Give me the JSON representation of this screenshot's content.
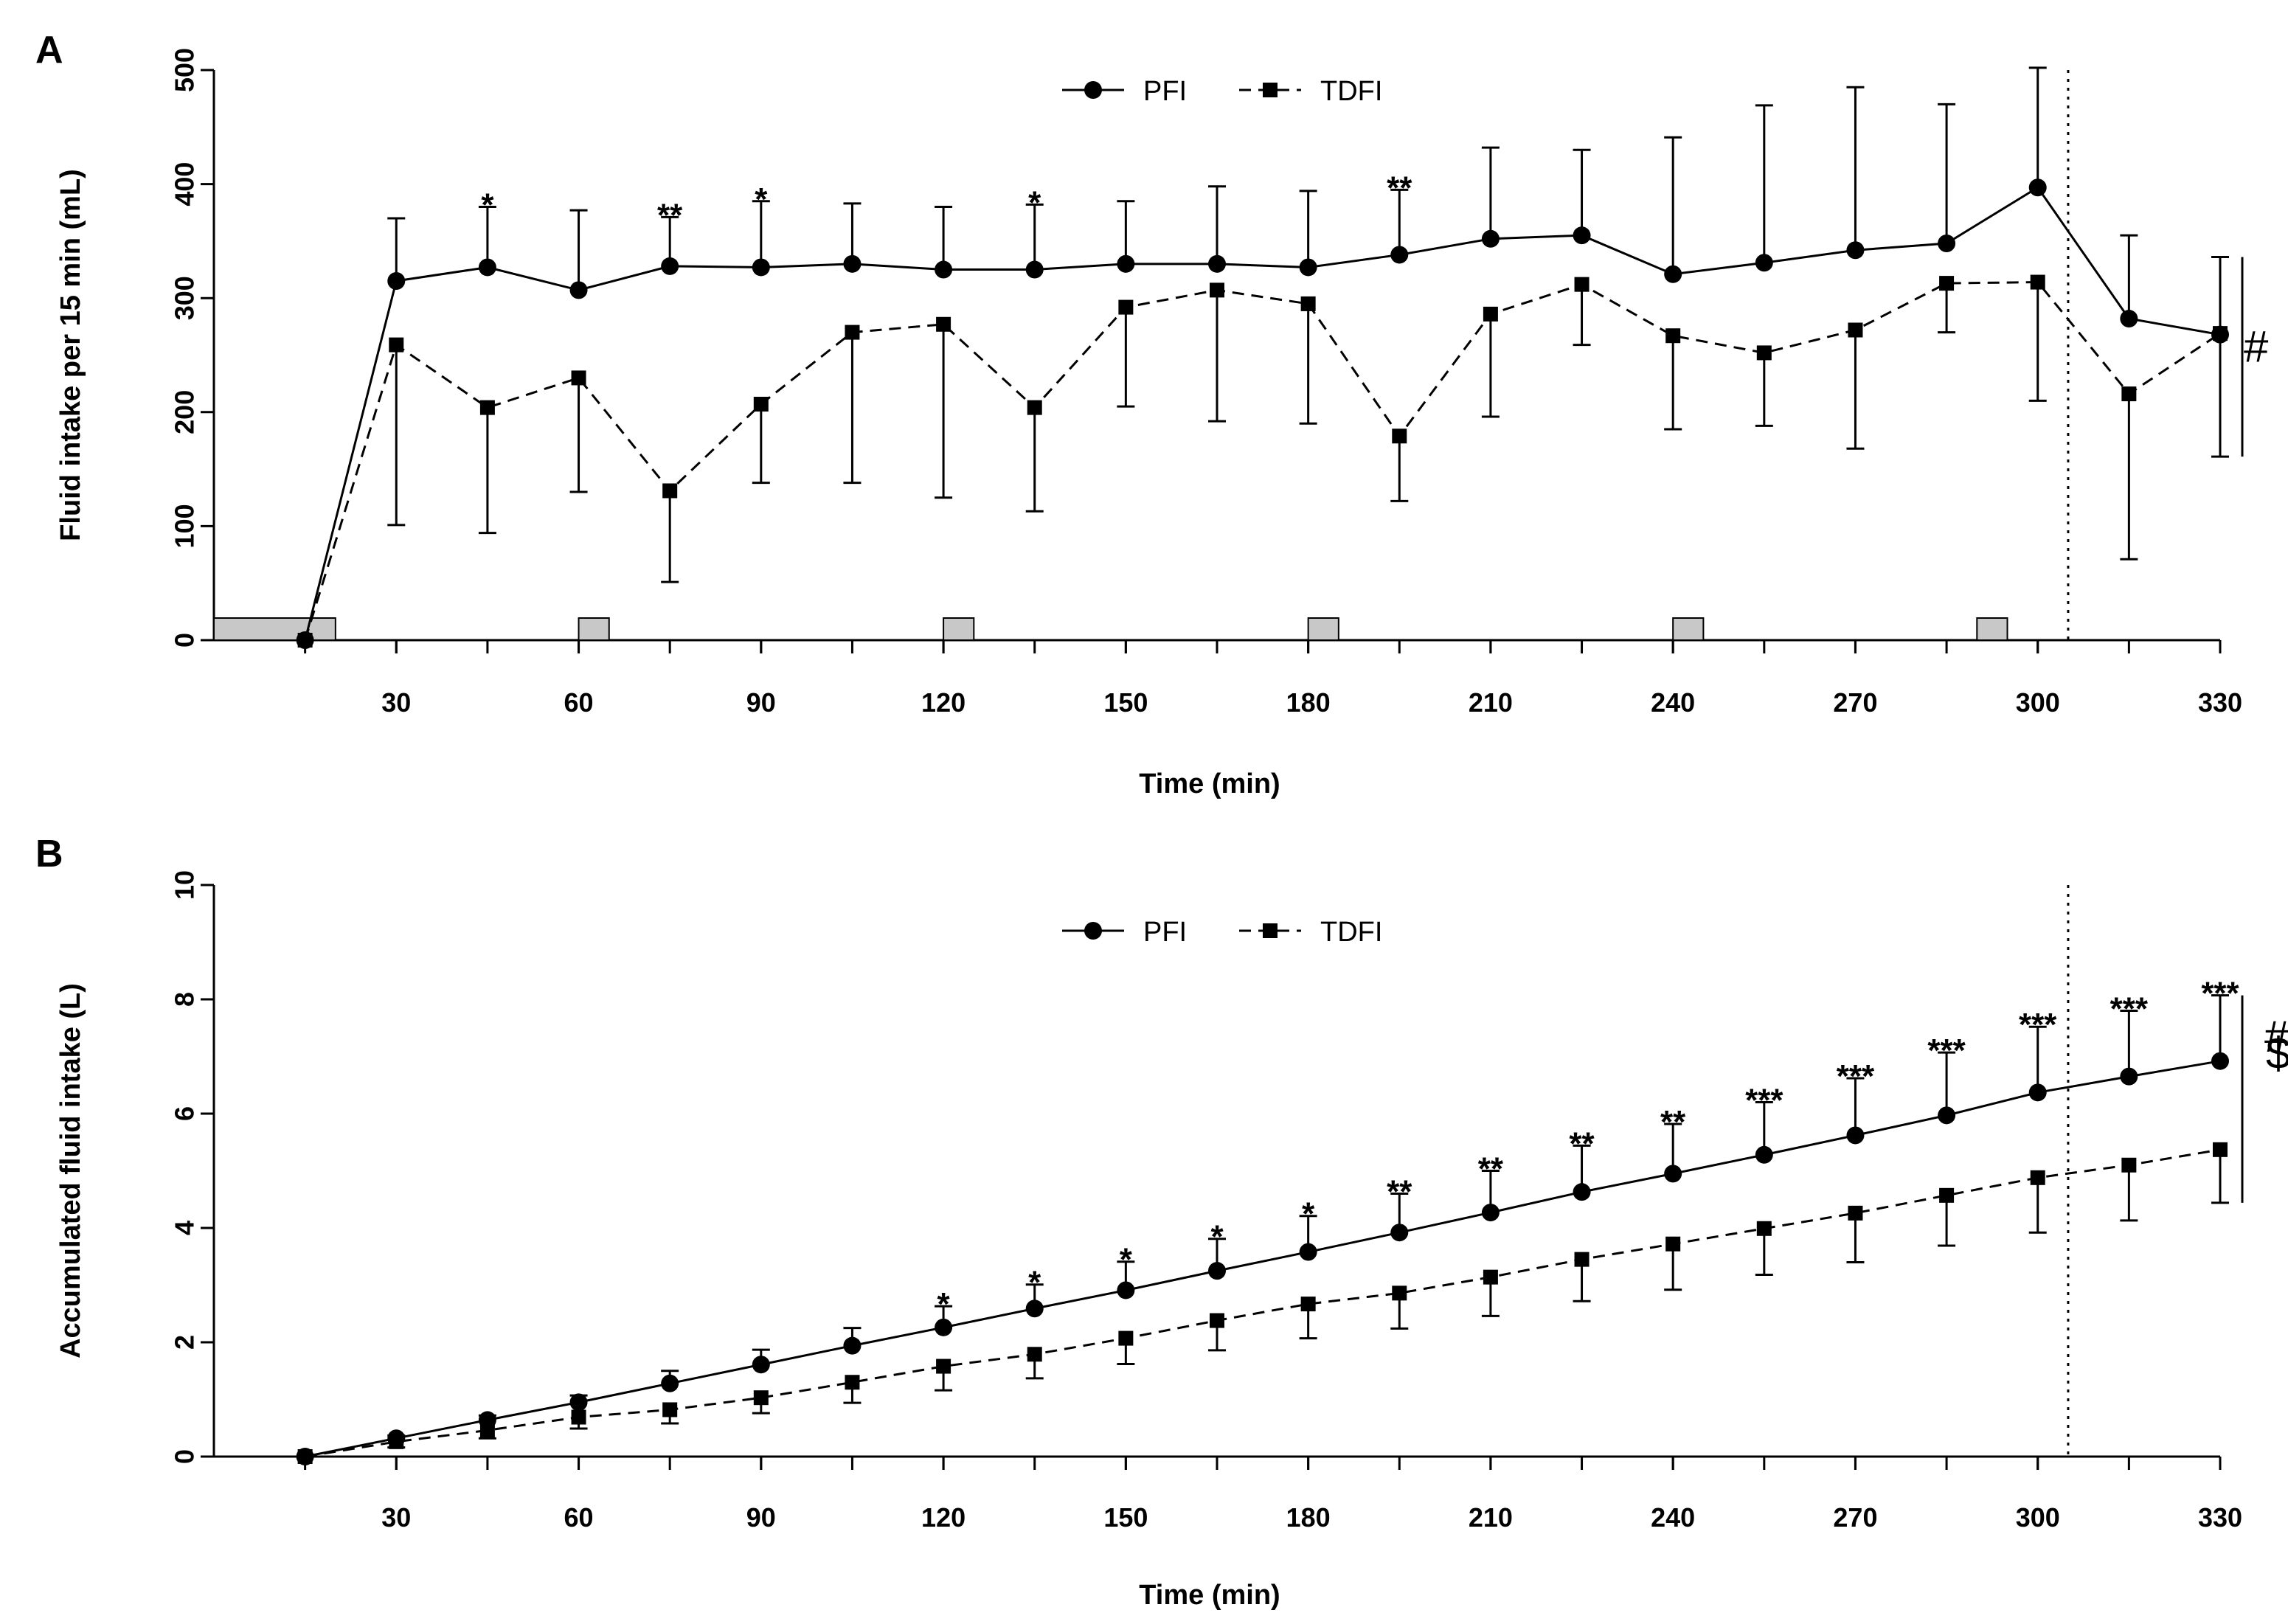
{
  "chart_data": [
    {
      "panel": "A",
      "type": "line",
      "xlabel": "Time (min)",
      "ylabel": "Fluid intake per 15 min (mL)",
      "xlim": [
        0,
        330
      ],
      "ylim": [
        0,
        500
      ],
      "xticks": [
        "30",
        "60",
        "90",
        "120",
        "150",
        "180",
        "210",
        "240",
        "270",
        "300",
        "330"
      ],
      "yticks": [
        "0",
        "100",
        "200",
        "300",
        "400",
        "500"
      ],
      "grid": false,
      "legend_position": "top-center",
      "vline_x": 305,
      "x": [
        15,
        30,
        45,
        60,
        75,
        90,
        105,
        120,
        135,
        150,
        165,
        180,
        195,
        210,
        225,
        240,
        255,
        270,
        285,
        300,
        315,
        330
      ],
      "series": [
        {
          "name": "PFI",
          "marker": "circle",
          "linestyle": "solid",
          "values": [
            0,
            315,
            327,
            307,
            328,
            327,
            330,
            325,
            325,
            330,
            330,
            327,
            338,
            352,
            355,
            321,
            331,
            342,
            348,
            397,
            282,
            268
          ],
          "error": [
            null,
            55,
            53,
            70,
            43,
            58,
            53,
            55,
            57,
            55,
            68,
            67,
            57,
            80,
            75,
            120,
            138,
            143,
            122,
            105,
            73,
            68
          ],
          "error_dir": [
            "none",
            "up",
            "up",
            "up",
            "up",
            "up",
            "up",
            "up",
            "up",
            "up",
            "up",
            "up",
            "up",
            "up",
            "up",
            "up",
            "up",
            "up",
            "up",
            "up",
            "up",
            "up"
          ]
        },
        {
          "name": "TDFI",
          "marker": "square",
          "linestyle": "dashed",
          "values": [
            0,
            259,
            204,
            230,
            131,
            207,
            270,
            277,
            204,
            292,
            307,
            295,
            179,
            286,
            312,
            267,
            252,
            272,
            313,
            314,
            216,
            269
          ],
          "error": [
            null,
            158,
            110,
            100,
            80,
            69,
            132,
            152,
            91,
            87,
            115,
            105,
            57,
            90,
            53,
            82,
            64,
            104,
            43,
            104,
            145,
            108
          ],
          "error_dir": [
            "none",
            "down",
            "down",
            "down",
            "down",
            "down",
            "down",
            "down",
            "down",
            "down",
            "down",
            "down",
            "down",
            "down",
            "down",
            "down",
            "down",
            "down",
            "down",
            "down",
            "down",
            "down"
          ]
        }
      ],
      "shaded_intervals": [
        [
          0,
          20
        ],
        [
          60,
          65
        ],
        [
          120,
          125
        ],
        [
          180,
          185
        ],
        [
          240,
          245
        ],
        [
          290,
          295
        ]
      ],
      "annotations": [
        {
          "x": 45,
          "label": "*"
        },
        {
          "x": 75,
          "label": "**"
        },
        {
          "x": 90,
          "label": "*"
        },
        {
          "x": 135,
          "label": "*"
        },
        {
          "x": 195,
          "label": "**"
        }
      ],
      "significance_marks": [
        "#"
      ]
    },
    {
      "panel": "B",
      "type": "line",
      "xlabel": "Time (min)",
      "ylabel": "Accumulated fluid intake (L)",
      "xlim": [
        0,
        330
      ],
      "ylim": [
        0,
        10
      ],
      "xticks": [
        "30",
        "60",
        "90",
        "120",
        "150",
        "180",
        "210",
        "240",
        "270",
        "300",
        "330"
      ],
      "yticks": [
        "0",
        "2",
        "4",
        "6",
        "8",
        "10"
      ],
      "grid": false,
      "legend_position": "top-center",
      "vline_x": 305,
      "x": [
        15,
        30,
        45,
        60,
        75,
        90,
        105,
        120,
        135,
        150,
        165,
        180,
        195,
        210,
        225,
        240,
        255,
        270,
        285,
        300,
        315,
        330
      ],
      "series": [
        {
          "name": "PFI",
          "marker": "circle",
          "linestyle": "solid",
          "values": [
            0,
            0.32,
            0.64,
            0.95,
            1.28,
            1.61,
            1.94,
            2.26,
            2.59,
            2.91,
            3.25,
            3.58,
            3.92,
            4.27,
            4.63,
            4.95,
            5.28,
            5.62,
            5.97,
            6.37,
            6.65,
            6.92
          ],
          "error": [
            null,
            0.05,
            0.08,
            0.12,
            0.22,
            0.26,
            0.31,
            0.37,
            0.42,
            0.5,
            0.56,
            0.63,
            0.68,
            0.73,
            0.81,
            0.87,
            0.92,
            1.0,
            1.1,
            1.15,
            1.15,
            1.15
          ],
          "error_dir": [
            "none",
            "up",
            "up",
            "up",
            "up",
            "up",
            "up",
            "up",
            "up",
            "up",
            "up",
            "up",
            "up",
            "up",
            "up",
            "up",
            "up",
            "up",
            "up",
            "up",
            "up",
            "up"
          ]
        },
        {
          "name": "TDFI",
          "marker": "square",
          "linestyle": "dashed",
          "values": [
            0,
            0.26,
            0.46,
            0.69,
            0.82,
            1.03,
            1.3,
            1.58,
            1.79,
            2.07,
            2.38,
            2.67,
            2.86,
            3.14,
            3.45,
            3.72,
            3.99,
            4.26,
            4.57,
            4.88,
            5.1,
            5.37
          ],
          "error": [
            null,
            0.1,
            0.14,
            0.2,
            0.24,
            0.27,
            0.36,
            0.42,
            0.42,
            0.45,
            0.52,
            0.6,
            0.62,
            0.68,
            0.73,
            0.8,
            0.81,
            0.86,
            0.88,
            0.96,
            0.97,
            0.93
          ],
          "error_dir": [
            "none",
            "down",
            "down",
            "down",
            "down",
            "down",
            "down",
            "down",
            "down",
            "down",
            "down",
            "down",
            "down",
            "down",
            "down",
            "down",
            "down",
            "down",
            "down",
            "down",
            "down",
            "down"
          ]
        }
      ],
      "annotations": [
        {
          "x": 120,
          "label": "*"
        },
        {
          "x": 135,
          "label": "*"
        },
        {
          "x": 150,
          "label": "*"
        },
        {
          "x": 165,
          "label": "*"
        },
        {
          "x": 180,
          "label": "*"
        },
        {
          "x": 195,
          "label": "**"
        },
        {
          "x": 210,
          "label": "**"
        },
        {
          "x": 225,
          "label": "**"
        },
        {
          "x": 240,
          "label": "**"
        },
        {
          "x": 255,
          "label": "***"
        },
        {
          "x": 270,
          "label": "***"
        },
        {
          "x": 285,
          "label": "***"
        },
        {
          "x": 300,
          "label": "***"
        },
        {
          "x": 315,
          "label": "***"
        },
        {
          "x": 330,
          "label": "***"
        }
      ],
      "significance_marks": [
        "#",
        "$"
      ]
    }
  ]
}
